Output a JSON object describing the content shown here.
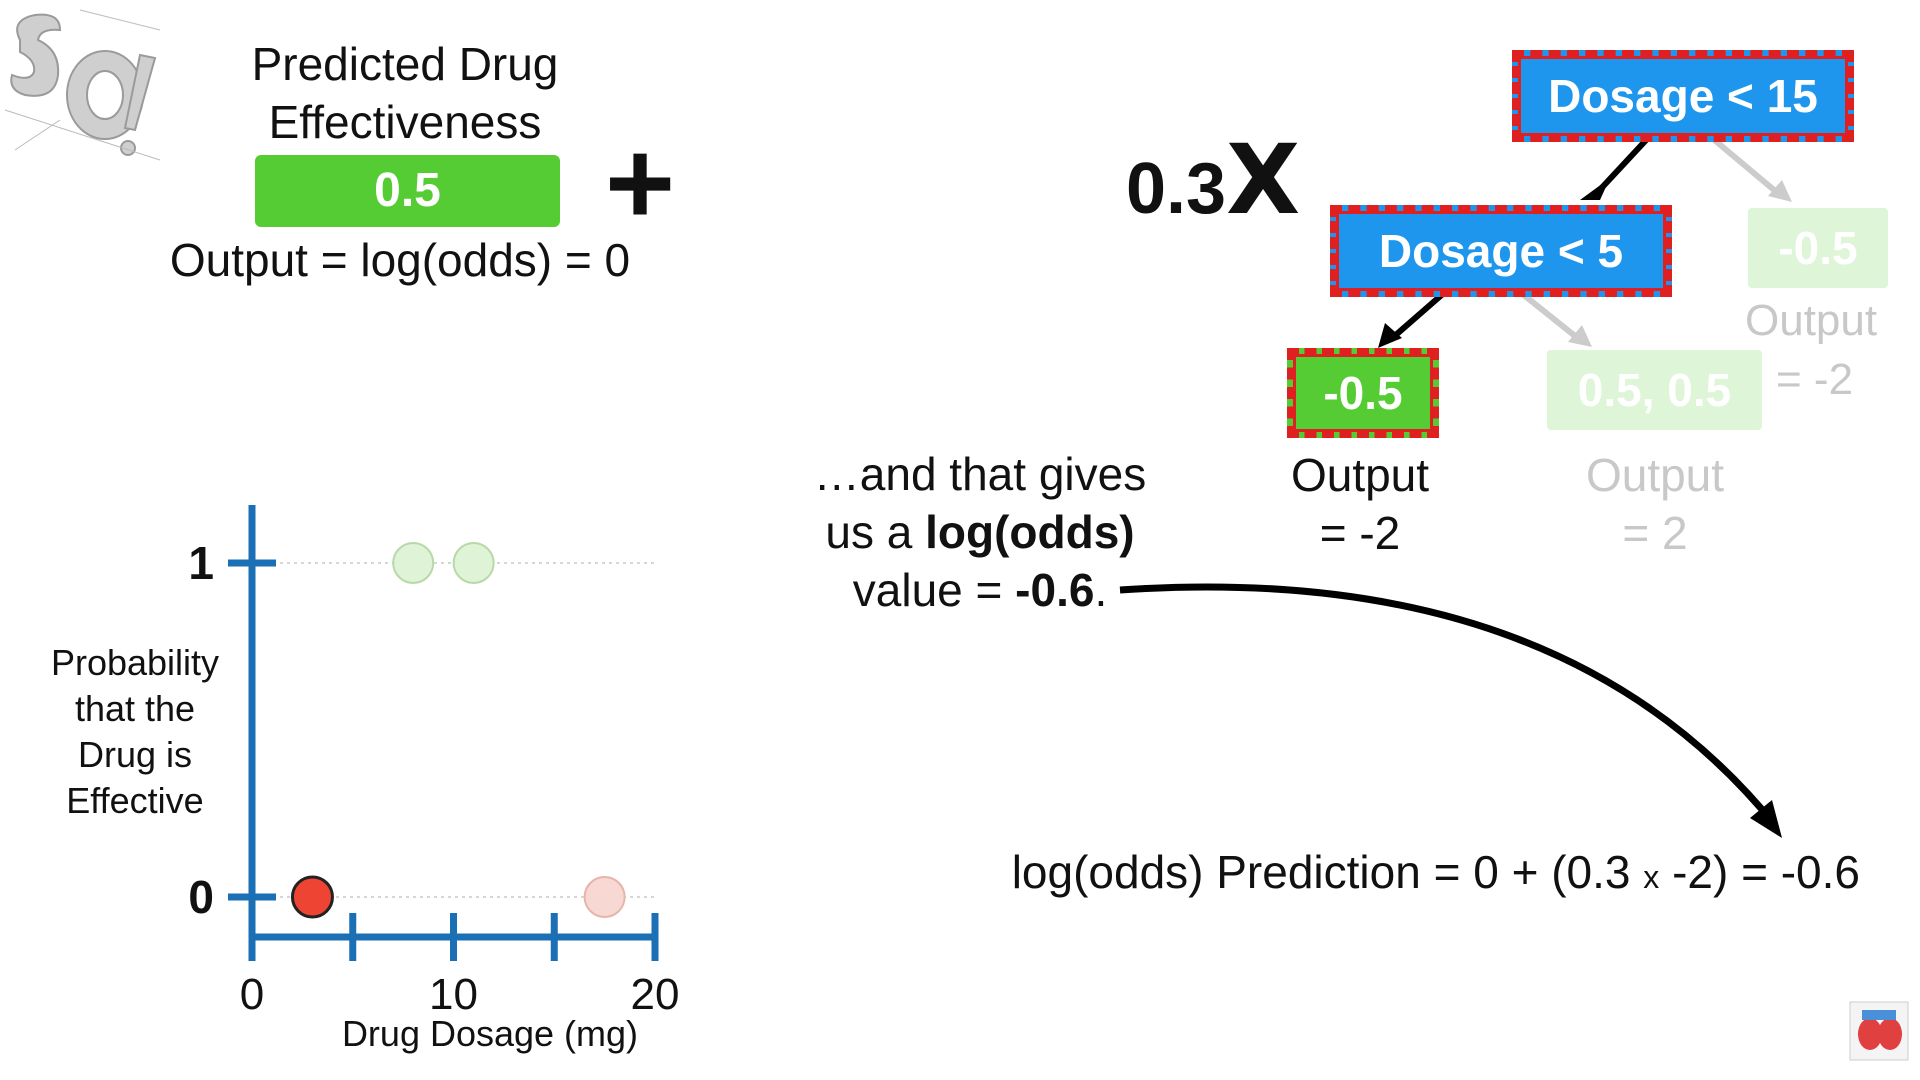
{
  "header": {
    "predicted_title_line1": "Predicted Drug",
    "predicted_title_line2": "Effectiveness",
    "initial_value": "0.5",
    "plus_sign": "+",
    "output_equation": "Output = log(odds) = 0"
  },
  "tree": {
    "learning_rate": "0.3",
    "multiply_sign": "X",
    "root_label": "Dosage < 15",
    "inner_label": "Dosage < 5",
    "leaf_left_value": "-0.5",
    "leaf_left_output_line1": "Output",
    "leaf_left_output_line2": "= -2",
    "leaf_mid_value": "0.5, 0.5",
    "leaf_mid_output_line1": "Output",
    "leaf_mid_output_line2": "= 2",
    "leaf_right_value": "-0.5",
    "leaf_right_output_line1": "Output",
    "leaf_right_output_line2": "= -2",
    "colors": {
      "node_blue": "#1e96ee",
      "node_green": "#55cc33",
      "highlight_red": "#e02020",
      "faded": "#c8c8c8"
    }
  },
  "explanation": {
    "line1": "…and that gives",
    "line2_prefix": "us a ",
    "line2_bold": "log(odds)",
    "line3_prefix": "value = ",
    "line3_bold": "-0.6",
    "line3_suffix": "."
  },
  "prediction": {
    "prefix": "log(odds) Prediction = 0 + (0.3 ",
    "times": "x",
    "suffix": " -2) = -0.6"
  },
  "chart_data": {
    "type": "scatter",
    "xlabel": "Drug Dosage (mg)",
    "ylabel_lines": [
      "Probability",
      "that the",
      "Drug is",
      "Effective"
    ],
    "x_ticks": [
      0,
      5,
      10,
      15,
      20
    ],
    "x_tick_labels": [
      "0",
      "10",
      "20"
    ],
    "x_tick_label_values": [
      0,
      10,
      20
    ],
    "y_tick_labels": [
      "0",
      "1"
    ],
    "xlim": [
      0,
      20
    ],
    "ylim": [
      0,
      1
    ],
    "points": [
      {
        "x": 3,
        "y": 0,
        "state": "highlighted",
        "color": "#ee4433"
      },
      {
        "x": 8,
        "y": 1,
        "state": "faded",
        "color": "#dff3d6"
      },
      {
        "x": 11,
        "y": 1,
        "state": "faded",
        "color": "#dff3d6"
      },
      {
        "x": 17.5,
        "y": 0,
        "state": "faded",
        "color": "#f8d8d2"
      }
    ],
    "axis_color": "#1a6fb5",
    "grid": "dotted reference lines at y=0 and y=1"
  }
}
